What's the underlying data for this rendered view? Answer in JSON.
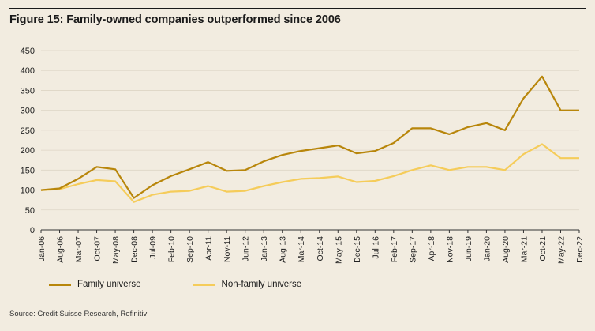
{
  "figure": {
    "title": "Figure 15: Family-owned companies outperformed since 2006",
    "source": "Source: Credit Suisse Research, Refinitiv"
  },
  "colors": {
    "background": "#f2ece0",
    "family": "#b8860b",
    "non_family": "#f5cc5a",
    "grid": "#ddd5c5"
  },
  "chart_data": {
    "type": "line",
    "ylim": [
      0,
      450
    ],
    "yticks": [
      0,
      50,
      100,
      150,
      200,
      250,
      300,
      350,
      400,
      450
    ],
    "grid": "horizontal",
    "legend_position": "bottom-left",
    "xticks": [
      "Jan-06",
      "Aug-06",
      "Mar-07",
      "Oct-07",
      "May-08",
      "Dec-08",
      "Jul-09",
      "Feb-10",
      "Sep-10",
      "Apr-11",
      "Nov-11",
      "Jun-12",
      "Jan-13",
      "Aug-13",
      "Mar-14",
      "Oct-14",
      "May-15",
      "Dec-15",
      "Jul-16",
      "Feb-17",
      "Sep-17",
      "Apr-18",
      "Nov-18",
      "Jun-19",
      "Jan-20",
      "Aug-20",
      "Mar-21",
      "Oct-21",
      "May-22",
      "Dec-22"
    ],
    "series": [
      {
        "name": "Family universe",
        "values": [
          100,
          104,
          128,
          158,
          152,
          80,
          112,
          135,
          152,
          170,
          148,
          150,
          172,
          188,
          198,
          205,
          212,
          192,
          198,
          218,
          255,
          255,
          240,
          258,
          268,
          250,
          330,
          385,
          300,
          300
        ]
      },
      {
        "name": "Non-family universe",
        "values": [
          100,
          102,
          115,
          125,
          122,
          70,
          88,
          96,
          98,
          110,
          96,
          98,
          110,
          120,
          128,
          130,
          134,
          120,
          123,
          135,
          150,
          162,
          150,
          158,
          158,
          150,
          190,
          215,
          180,
          180
        ]
      }
    ]
  }
}
